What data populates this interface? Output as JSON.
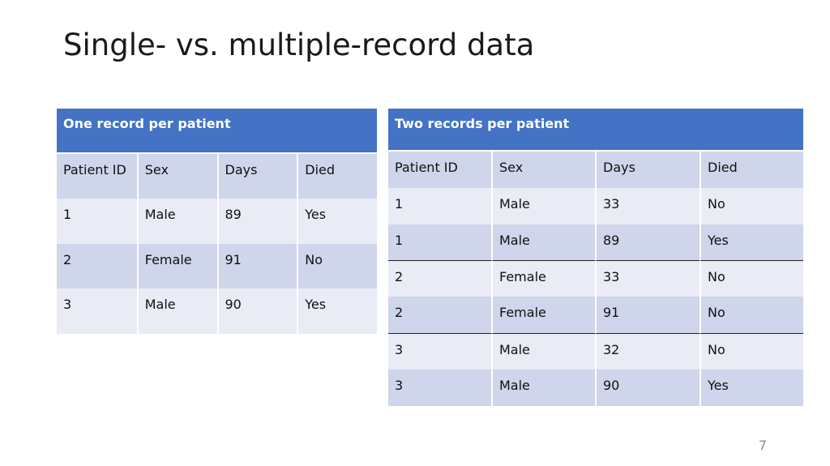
{
  "slide": {
    "title": "Single- vs. multiple-record data",
    "page_number": "7"
  },
  "table_one": {
    "caption": "One record per patient",
    "columns": [
      "Patient ID",
      "Sex",
      "Days",
      "Died"
    ],
    "rows": [
      [
        "1",
        "Male",
        "89",
        "Yes"
      ],
      [
        "2",
        "Female",
        "91",
        "No"
      ],
      [
        "3",
        "Male",
        "90",
        "Yes"
      ]
    ]
  },
  "table_two": {
    "caption": "Two records per patient",
    "columns": [
      "Patient ID",
      "Sex",
      "Days",
      "Died"
    ],
    "rows": [
      [
        "1",
        "Male",
        "33",
        "No"
      ],
      [
        "1",
        "Male",
        "89",
        "Yes"
      ],
      [
        "2",
        "Female",
        "33",
        "No"
      ],
      [
        "2",
        "Female",
        "91",
        "No"
      ],
      [
        "3",
        "Male",
        "32",
        "No"
      ],
      [
        "3",
        "Male",
        "90",
        "Yes"
      ]
    ]
  }
}
